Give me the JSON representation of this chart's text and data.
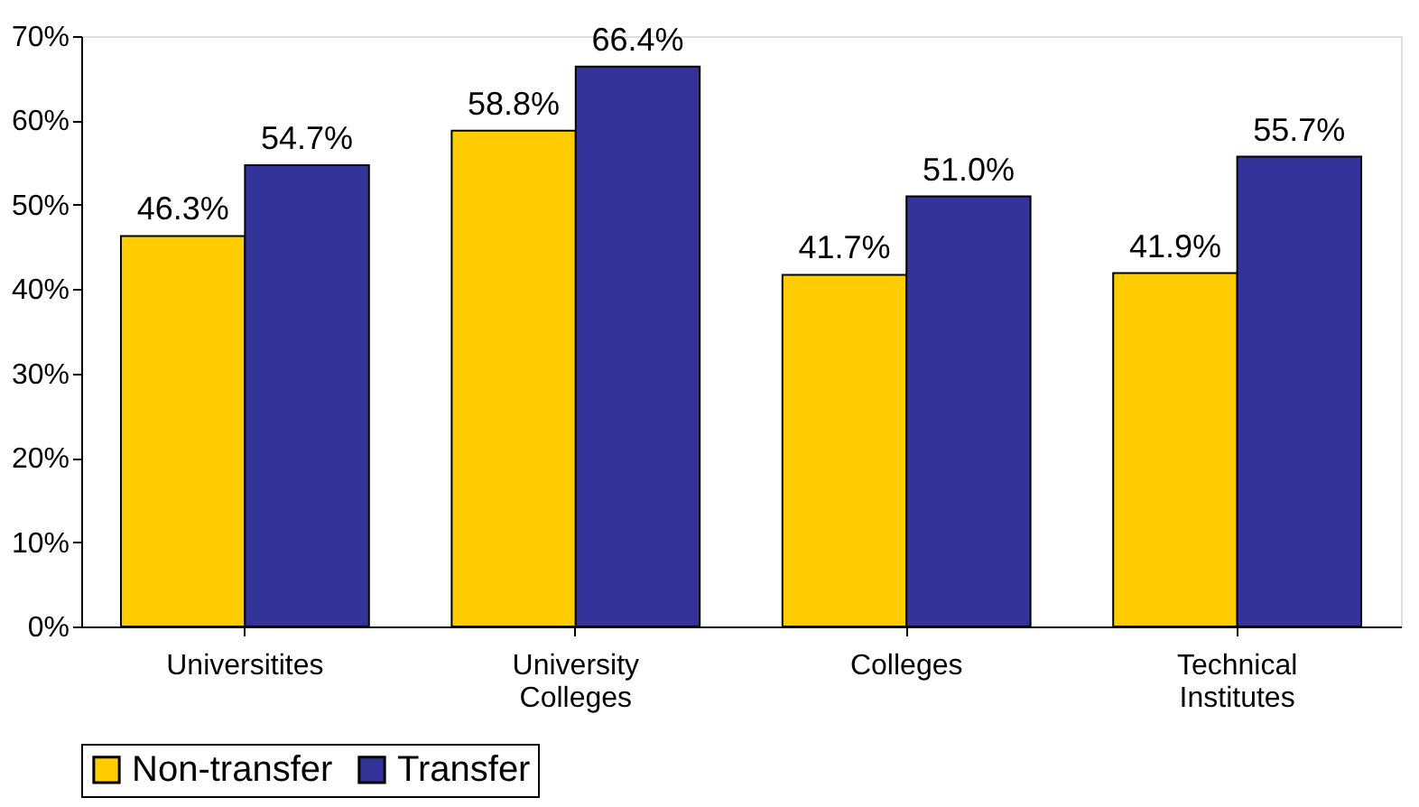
{
  "chart_data": {
    "type": "bar",
    "categories": [
      "Universitites",
      "University Colleges",
      "Colleges",
      "Technical Institutes"
    ],
    "series": [
      {
        "name": "Non-transfer",
        "color": "#ffcc00",
        "values": [
          46.3,
          58.8,
          41.7,
          41.9
        ],
        "value_labels": [
          "46.3%",
          "58.8%",
          "41.7%",
          "41.9%"
        ]
      },
      {
        "name": "Transfer",
        "color": "#333399",
        "values": [
          54.7,
          66.4,
          51.0,
          55.7
        ],
        "value_labels": [
          "54.7%",
          "66.4%",
          "51.0%",
          "55.7%"
        ]
      }
    ],
    "ylim": [
      0,
      70
    ],
    "yticks": [
      {
        "value": 0,
        "label": "0%"
      },
      {
        "value": 10,
        "label": "10%"
      },
      {
        "value": 20,
        "label": "20%"
      },
      {
        "value": 30,
        "label": "30%"
      },
      {
        "value": 40,
        "label": "40%"
      },
      {
        "value": 50,
        "label": "50%"
      },
      {
        "value": 60,
        "label": "60%"
      },
      {
        "value": 70,
        "label": "70%"
      }
    ],
    "grid": false,
    "legend": "bottom"
  }
}
